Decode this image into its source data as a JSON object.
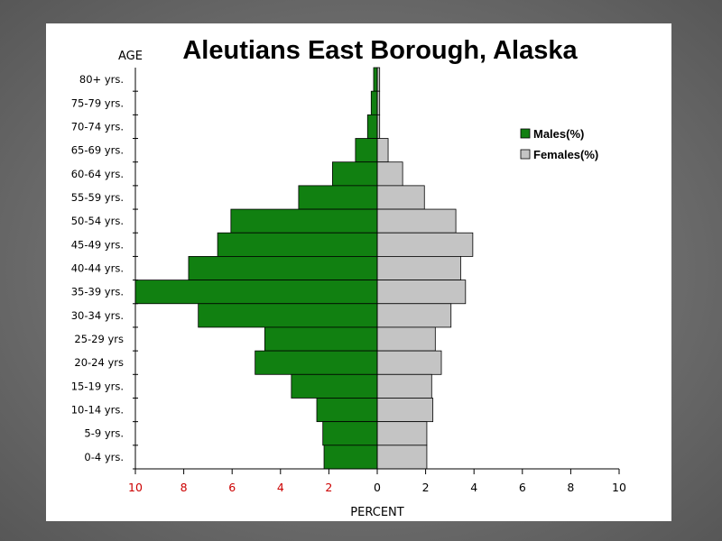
{
  "chart_data": {
    "type": "bar",
    "title": "Aleutians East Borough, Alaska",
    "ylabel": "AGE",
    "xlabel": "PERCENT",
    "xlim": [
      -10,
      10
    ],
    "categories": [
      "80+ yrs.",
      "75-79 yrs.",
      "70-74 yrs.",
      "65-69 yrs.",
      "60-64 yrs.",
      "55-59 yrs.",
      "50-54 yrs.",
      "45-49 yrs.",
      "40-44 yrs.",
      "35-39 yrs.",
      "30-34 yrs.",
      "25-29 yrs",
      "20-24 yrs",
      "15-19 yrs.",
      "10-14 yrs.",
      "5-9 yrs.",
      "0-4 yrs."
    ],
    "series": [
      {
        "name": "Males(%)",
        "color": "#118011",
        "values": [
          0.15,
          0.25,
          0.4,
          0.9,
          1.85,
          3.25,
          6.05,
          6.6,
          7.8,
          10.0,
          7.4,
          4.65,
          5.05,
          3.55,
          2.5,
          2.25,
          2.2
        ]
      },
      {
        "name": "Females(%)",
        "color": "#c4c4c4",
        "values": [
          0.1,
          0.1,
          0.1,
          0.45,
          1.05,
          1.95,
          3.25,
          3.95,
          3.45,
          3.65,
          3.05,
          2.4,
          2.65,
          2.25,
          2.3,
          2.05,
          2.05
        ]
      }
    ],
    "x_ticks": [
      "10",
      "8",
      "6",
      "4",
      "2",
      "0",
      "2",
      "4",
      "6",
      "8",
      "10"
    ],
    "left_tick_color": "#cc0000",
    "legend_position": "top-right",
    "grid": false
  }
}
